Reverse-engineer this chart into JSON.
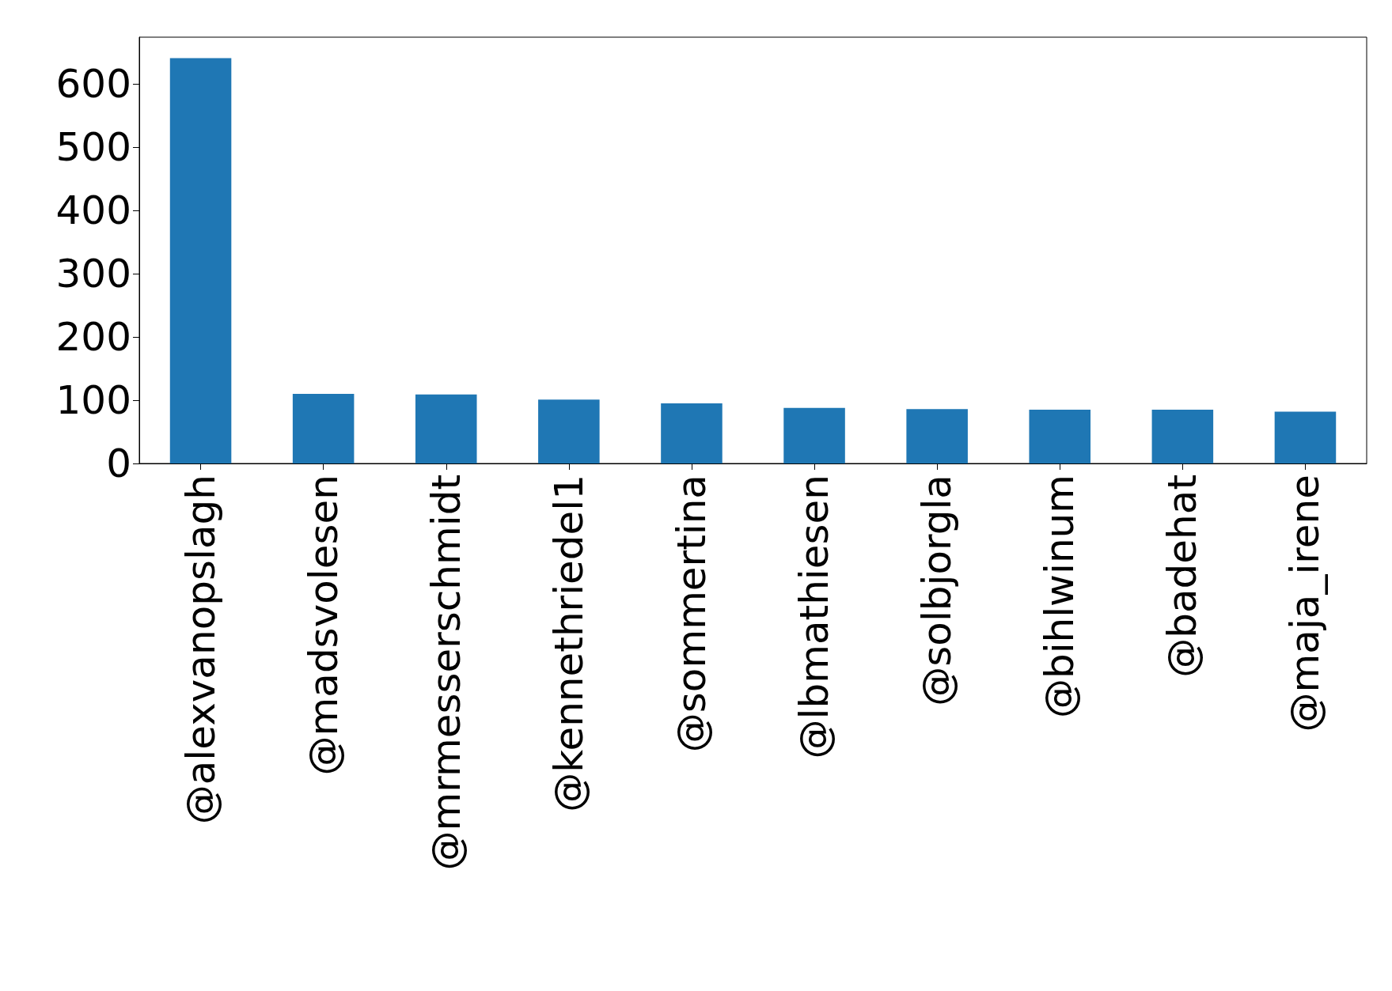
{
  "chart_data": {
    "type": "bar",
    "categories": [
      "@alexvanopslagh",
      "@madsvolesen",
      "@mrmesserschmidt",
      "@kennethriedel1",
      "@sommertina",
      "@lbmathiesen",
      "@solbjorgla",
      "@bihlwinum",
      "@badehat",
      "@maja_irene"
    ],
    "values": [
      641,
      110,
      109,
      101,
      95,
      88,
      86,
      85,
      85,
      82
    ],
    "color": "#1f77b4",
    "ylim": [
      0,
      674
    ],
    "yticks": [
      0,
      100,
      200,
      300,
      400,
      500,
      600
    ],
    "grid": false
  }
}
